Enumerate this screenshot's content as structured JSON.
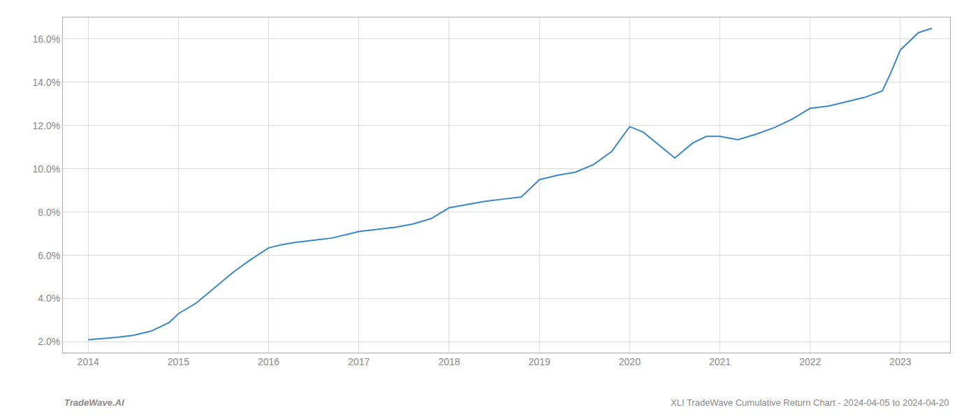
{
  "chart_data": {
    "type": "line",
    "x": [
      2014.0,
      2014.15,
      2014.3,
      2014.5,
      2014.7,
      2014.9,
      2015.0,
      2015.2,
      2015.4,
      2015.6,
      2015.8,
      2016.0,
      2016.15,
      2016.3,
      2016.5,
      2016.7,
      2016.9,
      2017.0,
      2017.2,
      2017.4,
      2017.6,
      2017.8,
      2018.0,
      2018.2,
      2018.4,
      2018.6,
      2018.8,
      2019.0,
      2019.2,
      2019.4,
      2019.6,
      2019.8,
      2020.0,
      2020.15,
      2020.5,
      2020.7,
      2020.85,
      2021.0,
      2021.2,
      2021.4,
      2021.6,
      2021.8,
      2022.0,
      2022.2,
      2022.4,
      2022.6,
      2022.8,
      2022.9,
      2023.0,
      2023.2,
      2023.35
    ],
    "values": [
      2.1,
      2.15,
      2.2,
      2.3,
      2.5,
      2.9,
      3.3,
      3.8,
      4.5,
      5.2,
      5.8,
      6.35,
      6.5,
      6.6,
      6.7,
      6.8,
      7.0,
      7.1,
      7.2,
      7.3,
      7.45,
      7.7,
      8.2,
      8.35,
      8.5,
      8.6,
      8.7,
      9.5,
      9.7,
      9.85,
      10.2,
      10.8,
      11.95,
      11.7,
      10.5,
      11.2,
      11.5,
      11.5,
      11.35,
      11.6,
      11.9,
      12.3,
      12.8,
      12.9,
      13.1,
      13.3,
      13.6,
      14.5,
      15.5,
      16.3,
      16.5
    ],
    "color": "#3a87c8",
    "xlim": [
      2013.72,
      2023.55
    ],
    "ylim": [
      1.5,
      17.0
    ],
    "xticks": [
      2014,
      2015,
      2016,
      2017,
      2018,
      2019,
      2020,
      2021,
      2022,
      2023
    ],
    "yticks": [
      {
        "value": 2.0,
        "label": "2.0%"
      },
      {
        "value": 4.0,
        "label": "4.0%"
      },
      {
        "value": 6.0,
        "label": "6.0%"
      },
      {
        "value": 8.0,
        "label": "8.0%"
      },
      {
        "value": 10.0,
        "label": "10.0%"
      },
      {
        "value": 12.0,
        "label": "12.0%"
      },
      {
        "value": 14.0,
        "label": "14.0%"
      },
      {
        "value": 16.0,
        "label": "16.0%"
      }
    ],
    "grid": true,
    "annotations": [
      "TradeWave.AI",
      "XLI TradeWave Cumulative Return Chart - 2024-04-05 to 2024-04-20"
    ]
  }
}
